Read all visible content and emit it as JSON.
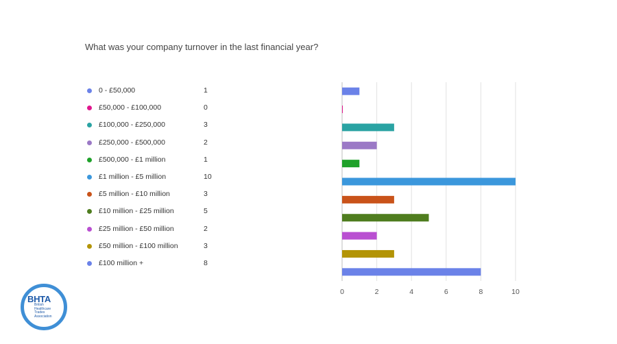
{
  "question": "What was your company turnover in the last financial year?",
  "chart_data": {
    "type": "bar",
    "orientation": "horizontal",
    "categories": [
      "0 - £50,000",
      "£50,000 - £100,000",
      "£100,000 - £250,000",
      "£250,000 - £500,000",
      "£500,000 - £1 million",
      "£1 million - £5 million",
      "£5 million - £10 million",
      "£10 million - £25 million",
      "£25 million - £50 million",
      "£50 million - £100 million",
      "£100 million +"
    ],
    "values": [
      1,
      0,
      3,
      2,
      1,
      10,
      3,
      5,
      2,
      3,
      8
    ],
    "colors": [
      "#6b82e8",
      "#e0168d",
      "#2aa3a3",
      "#9b79c6",
      "#1fa12a",
      "#3b97dc",
      "#c9531a",
      "#4f7d1f",
      "#b94fd1",
      "#b39406",
      "#6b82e8"
    ],
    "xlim": [
      0,
      10
    ],
    "xticks": [
      0,
      2,
      4,
      6,
      8,
      10
    ],
    "grid": true,
    "legend_position": "left"
  },
  "logo": {
    "title": "BHTA",
    "subtitle": [
      "British",
      "Healthcare",
      "Trades",
      "Association"
    ],
    "color": "#3f8fd6"
  }
}
